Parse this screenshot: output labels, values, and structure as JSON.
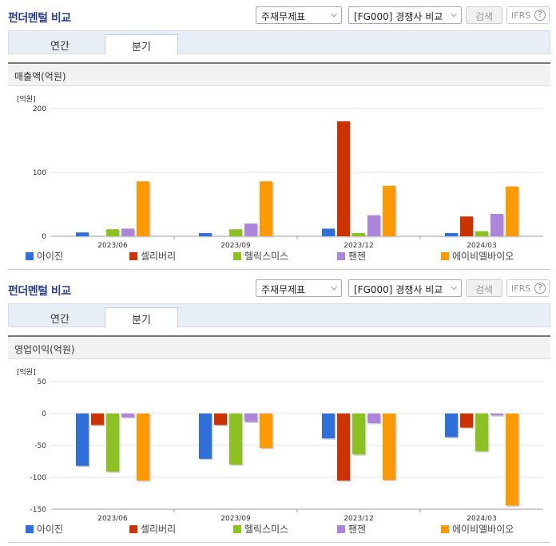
{
  "colors": {
    "series": [
      "#2e6fdc",
      "#cc3300",
      "#8cc21f",
      "#ad85db",
      "#ff9900"
    ],
    "grid": "#e3e3e3",
    "axis": "#999999"
  },
  "panels": [
    {
      "title": "펀더멘털 비교",
      "select1": "주재무제표",
      "select2": "[FG000] 경쟁사 비교",
      "search_label": "검색",
      "ifrs_label": "IFRS",
      "ifrs_help": "?",
      "tabs": [
        "연간",
        "분기"
      ],
      "active_tab": 1,
      "metric": "매출액(억원)",
      "unit": "[억원]"
    },
    {
      "title": "펀더멘털 비교",
      "select1": "주재무제표",
      "select2": "[FG000] 경쟁사 비교",
      "search_label": "검색",
      "ifrs_label": "IFRS",
      "ifrs_help": "?",
      "tabs": [
        "연간",
        "분기"
      ],
      "active_tab": 1,
      "metric": "영업이익(억원)",
      "unit": "[억원]"
    }
  ],
  "chart_data": [
    {
      "type": "bar",
      "title": "매출액(억원)",
      "ylabel": "[억원]",
      "categories": [
        "2023/06",
        "2023/09",
        "2023/12",
        "2024/03"
      ],
      "yticks": [
        0,
        100,
        200
      ],
      "ylim": [
        0,
        200
      ],
      "grid": true,
      "legend_position": "bottom",
      "series": [
        {
          "name": "아이진",
          "values": [
            6,
            5,
            12,
            5
          ]
        },
        {
          "name": "셀리버리",
          "values": [
            0,
            0,
            180,
            31
          ]
        },
        {
          "name": "헬릭스미스",
          "values": [
            11,
            11,
            5,
            8
          ]
        },
        {
          "name": "팬젠",
          "values": [
            12,
            20,
            33,
            35
          ]
        },
        {
          "name": "에이비엘바이오",
          "values": [
            86,
            86,
            79,
            78
          ]
        }
      ]
    },
    {
      "type": "bar",
      "title": "영업이익(억원)",
      "ylabel": "[억원]",
      "categories": [
        "2023/06",
        "2023/09",
        "2023/12",
        "2024/03"
      ],
      "yticks": [
        50,
        0,
        -50,
        -100,
        -150
      ],
      "ylim": [
        -150,
        50
      ],
      "grid": true,
      "legend_position": "bottom",
      "series": [
        {
          "name": "아이진",
          "values": [
            -82,
            -71,
            -39,
            -37
          ]
        },
        {
          "name": "셀리버리",
          "values": [
            -18,
            -18,
            -105,
            -22
          ]
        },
        {
          "name": "헬릭스미스",
          "values": [
            -91,
            -80,
            -64,
            -59
          ]
        },
        {
          "name": "팬젠",
          "values": [
            -6,
            -13,
            -15,
            -3
          ]
        },
        {
          "name": "에이비엘바이오",
          "values": [
            -105,
            -54,
            -104,
            -144
          ]
        }
      ]
    }
  ]
}
